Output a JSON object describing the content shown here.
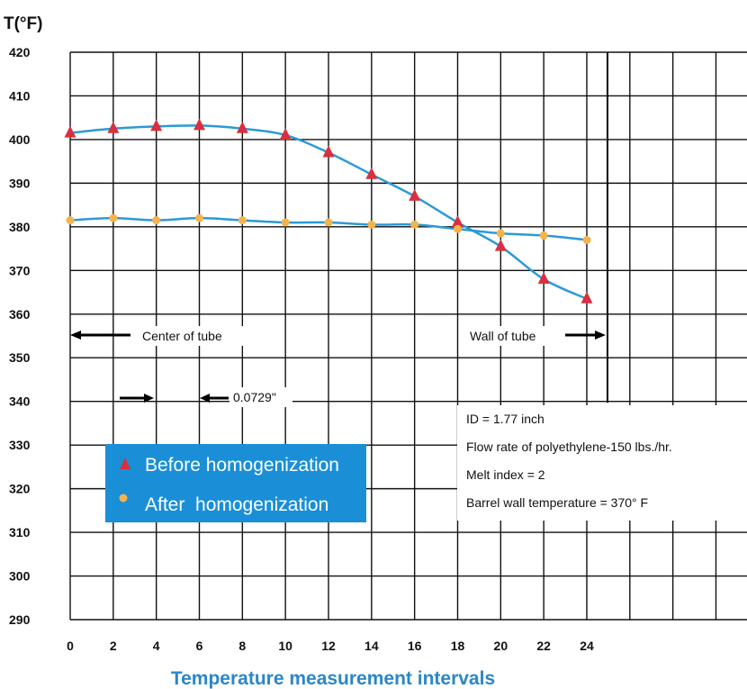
{
  "chart_data": {
    "type": "line",
    "ylabel": "T(°F)",
    "xlabel": "Temperature measurement intervals",
    "x": [
      0,
      2,
      4,
      6,
      8,
      10,
      12,
      14,
      16,
      18,
      20,
      22,
      24
    ],
    "x_ticks": [
      "0",
      "2",
      "4",
      "6",
      "8",
      "10",
      "12",
      "14",
      "16",
      "18",
      "20",
      "22",
      "24"
    ],
    "y_ticks": [
      "420",
      "410",
      "400",
      "390",
      "380",
      "370",
      "360",
      "350",
      "340",
      "330",
      "320",
      "310",
      "300",
      "290"
    ],
    "ylim": [
      290,
      420
    ],
    "grid": true,
    "series": [
      {
        "name": "Before homogenization",
        "marker": "triangle",
        "marker_color": "#d9303f",
        "values": [
          401.5,
          402.5,
          403,
          403.2,
          402.5,
          401,
          397,
          392,
          387,
          381,
          375.5,
          368,
          363.5
        ]
      },
      {
        "name": "After homogenization",
        "marker": "circle",
        "marker_color": "#f4b34d",
        "values": [
          381.5,
          382,
          381.5,
          382,
          381.5,
          381,
          381,
          380.5,
          380.5,
          379.5,
          378.5,
          378,
          377
        ]
      }
    ],
    "line_color": "#2b9ad6",
    "legend_position": "lower-left",
    "legend_bg": "#1a8fd8",
    "annotations": {
      "center_of_tube": "Center of tube",
      "wall_of_tube": "Wall of tube",
      "spacing": "0.0729\"",
      "specs": [
        "ID = 1.77 inch",
        "Flow rate of polyethylene-150 lbs./hr.",
        "Melt index = 2",
        "Barrel wall temperature = 370° F"
      ]
    }
  }
}
